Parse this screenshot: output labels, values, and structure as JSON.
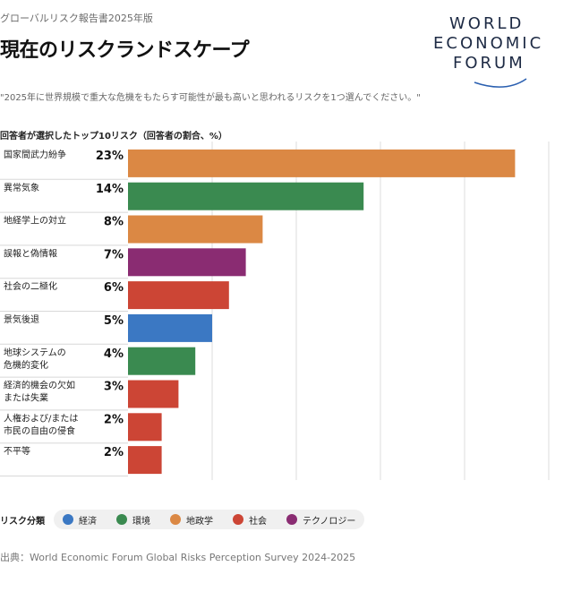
{
  "header": {
    "subtitle": "グローバルリスク報告書2025年版",
    "title": "現在のリスクランドスケープ",
    "logo_lines": [
      "WORLD",
      "ECONOMIC",
      "FORUM"
    ]
  },
  "question": "\"2025年に世界規模で重大な危機をもたらす可能性が最も高いと思われるリスクを1つ選んでください。\"",
  "colors": {
    "economic": "#3b78c3",
    "environmental": "#3a8a50",
    "geopolitical": "#db8844",
    "societal": "#cc4535",
    "technological": "#8a2c72",
    "grid": "#dcdcdc",
    "separator": "#d8d8d8"
  },
  "chart_data": {
    "type": "bar",
    "orientation": "horizontal",
    "title": "回答者が選択したトップ10リスク（回答者の割合、%）",
    "categories": [
      "国家間武力紛争",
      "異常気象",
      "地経学上の対立",
      "誤報と偽情報",
      "社会の二極化",
      "景気後退",
      "地球システムの危機的変化",
      "経済的機会の欠如または失業",
      "人権および/または市民の自由の侵食",
      "不平等"
    ],
    "category_lines": [
      [
        "国家間武力紛争"
      ],
      [
        "異常気象"
      ],
      [
        "地経学上の対立"
      ],
      [
        "誤報と偽情報"
      ],
      [
        "社会の二極化"
      ],
      [
        "景気後退"
      ],
      [
        "地球システムの",
        "危機的変化"
      ],
      [
        "経済的機会の欠如",
        "または失業"
      ],
      [
        "人権および/または",
        "市民の自由の侵食"
      ],
      [
        "不平等"
      ]
    ],
    "values": [
      23,
      14,
      8,
      7,
      6,
      5,
      4,
      3,
      2,
      2
    ],
    "value_labels": [
      "23%",
      "14%",
      "8%",
      "7%",
      "6%",
      "5%",
      "4%",
      "3%",
      "2%",
      "2%"
    ],
    "risk_category": [
      "geopolitical",
      "environmental",
      "geopolitical",
      "technological",
      "societal",
      "economic",
      "environmental",
      "societal",
      "societal",
      "societal"
    ],
    "xlim": [
      0,
      25
    ],
    "grid_ticks": [
      5,
      10,
      15,
      20,
      25
    ],
    "grid": true
  },
  "legend": {
    "title": "リスク分類",
    "items": [
      {
        "key": "economic",
        "label": "経済"
      },
      {
        "key": "environmental",
        "label": "環境"
      },
      {
        "key": "geopolitical",
        "label": "地政学"
      },
      {
        "key": "societal",
        "label": "社会"
      },
      {
        "key": "technological",
        "label": "テクノロジー"
      }
    ]
  },
  "source": "出典：World Economic Forum Global Risks Perception Survey 2024-2025"
}
